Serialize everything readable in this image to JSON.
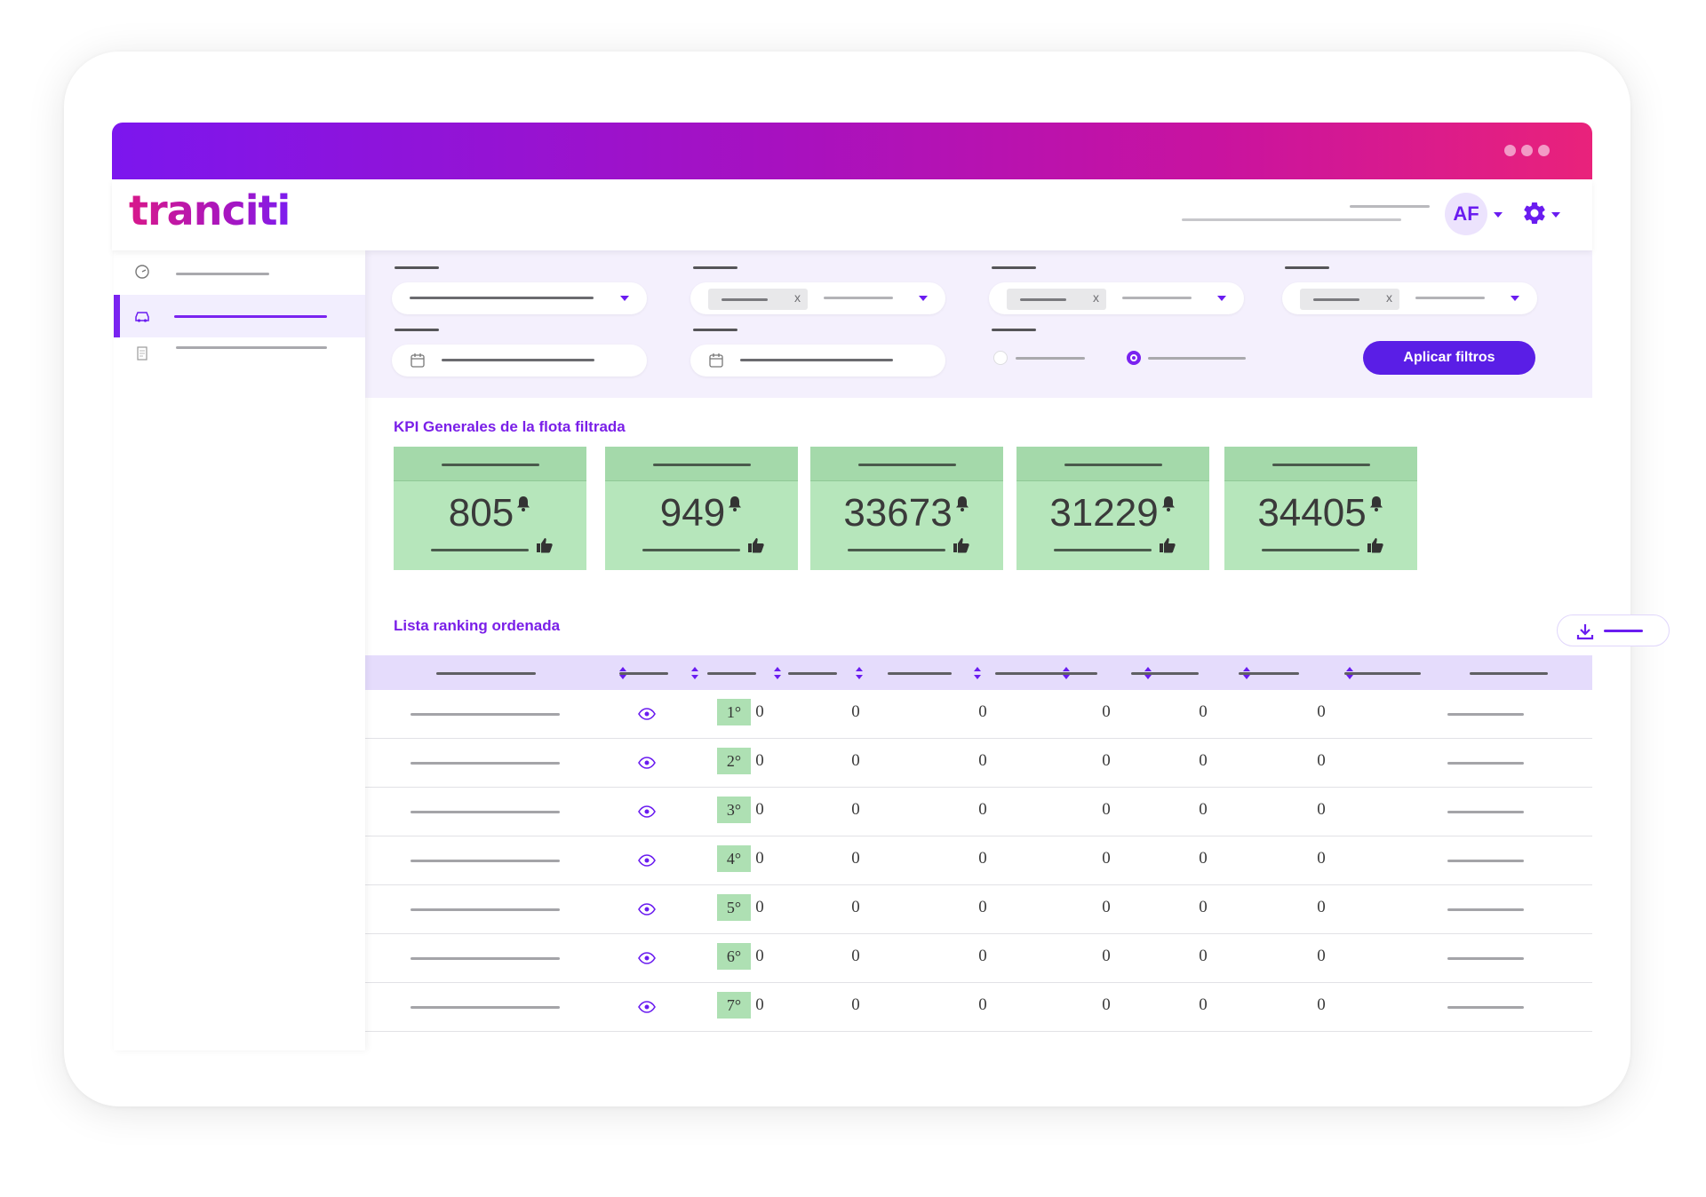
{
  "app": {
    "logo_text": "tranciti",
    "user_initials": "AF",
    "accent_color": "#6a1cf0",
    "gradient": [
      "#7c16ee",
      "#e9227b"
    ]
  },
  "sidebar": {
    "items": [
      {
        "icon": "speedometer-icon",
        "active": false
      },
      {
        "icon": "car-icon",
        "active": true
      },
      {
        "icon": "document-icon",
        "active": false
      }
    ]
  },
  "filters": {
    "apply_label": "Aplicar filtros",
    "chip_remove": "x"
  },
  "kpi": {
    "title": "KPI Generales de la flota filtrada",
    "cards": [
      {
        "value": "805"
      },
      {
        "value": "949"
      },
      {
        "value": "33673"
      },
      {
        "value": "31229"
      },
      {
        "value": "34405"
      }
    ],
    "card_color": "#b6e6bb"
  },
  "ranking": {
    "title": "Lista ranking ordenada",
    "rows": [
      {
        "rank": "1°",
        "values": [
          "0",
          "0",
          "0",
          "0",
          "0",
          "0"
        ]
      },
      {
        "rank": "2°",
        "values": [
          "0",
          "0",
          "0",
          "0",
          "0",
          "0"
        ]
      },
      {
        "rank": "3°",
        "values": [
          "0",
          "0",
          "0",
          "0",
          "0",
          "0"
        ]
      },
      {
        "rank": "4°",
        "values": [
          "0",
          "0",
          "0",
          "0",
          "0",
          "0"
        ]
      },
      {
        "rank": "5°",
        "values": [
          "0",
          "0",
          "0",
          "0",
          "0",
          "0"
        ]
      },
      {
        "rank": "6°",
        "values": [
          "0",
          "0",
          "0",
          "0",
          "0",
          "0"
        ]
      },
      {
        "rank": "7°",
        "values": [
          "0",
          "0",
          "0",
          "0",
          "0",
          "0"
        ]
      }
    ]
  }
}
